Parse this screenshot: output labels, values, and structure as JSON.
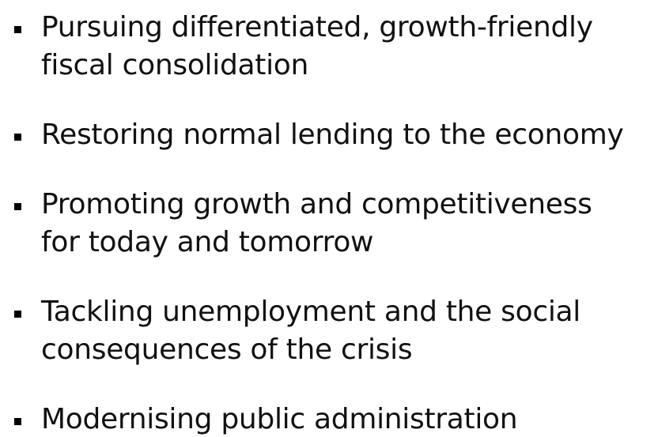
{
  "items": [
    {
      "lines": [
        "Pursuing differentiated, growth-friendly",
        "fiscal consolidation"
      ]
    },
    {
      "lines": [
        "Restoring normal lending to the economy"
      ]
    },
    {
      "lines": [
        "Promoting growth and competitiveness",
        "for today and tomorrow"
      ]
    },
    {
      "lines": [
        "Tackling unemployment and the social",
        "consequences of the crisis"
      ]
    },
    {
      "lines": [
        "Modernising public administration"
      ]
    }
  ]
}
